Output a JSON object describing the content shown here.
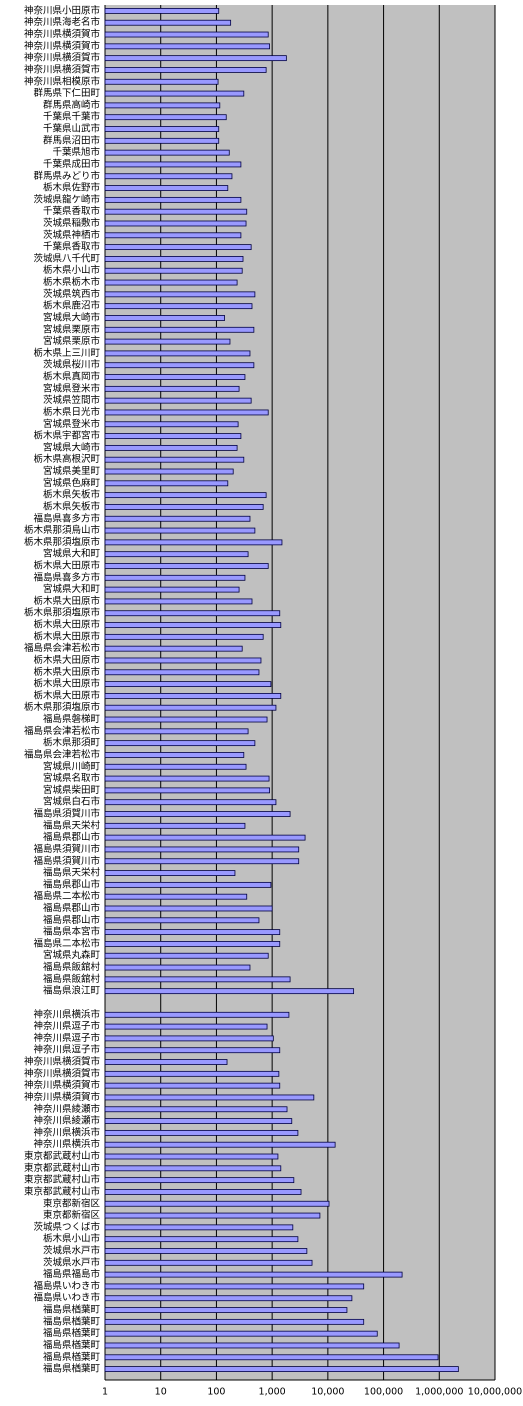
{
  "chart_data": {
    "type": "bar",
    "orientation": "horizontal",
    "log_scale": true,
    "grid": true,
    "color": "#9999ff",
    "categories": [
      "神奈川県小田原市",
      "神奈川県海老名市",
      "神奈川県横須賀市",
      "神奈川県横須賀市",
      "神奈川県横須賀市",
      "神奈川県横須賀市",
      "神奈川県相模原市",
      "群馬県下仁田町",
      "群馬県高崎市",
      "千葉県千葉市",
      "千葉県山武市",
      "群馬県沼田市",
      "千葉県旭市",
      "千葉県成田市",
      "群馬県みどり市",
      "栃木県佐野市",
      "茨城県龍ケ崎市",
      "千葉県香取市",
      "茨城県稲敷市",
      "茨城県神栖市",
      "千葉県香取市",
      "茨城県八千代町",
      "栃木県小山市",
      "栃木県栃木市",
      "茨城県筑西市",
      "栃木県鹿沼市",
      "宮城県大崎市",
      "宮城県栗原市",
      "宮城県栗原市",
      "栃木県上三川町",
      "茨城県桜川市",
      "栃木県真岡市",
      "宮城県登米市",
      "茨城県笠間市",
      "栃木県日光市",
      "宮城県登米市",
      "栃木県宇都宮市",
      "宮城県大崎市",
      "栃木県高根沢町",
      "宮城県美里町",
      "宮城県色麻町",
      "栃木県矢板市",
      "栃木県矢板市",
      "福島県喜多方市",
      "栃木県那須烏山市",
      "栃木県那須塩原市",
      "宮城県大和町",
      "栃木県大田原市",
      "福島県喜多方市",
      "宮城県大和町",
      "栃木県大田原市",
      "栃木県那須塩原市",
      "栃木県大田原市",
      "栃木県大田原市",
      "福島県会津若松市",
      "栃木県大田原市",
      "栃木県大田原市",
      "栃木県大田原市",
      "栃木県大田原市",
      "栃木県那須塩原市",
      "福島県磐梯町",
      "福島県会津若松市",
      "栃木県那須町",
      "福島県会津若松市",
      "宮城県川崎町",
      "宮城県名取市",
      "宮城県柴田町",
      "宮城県白石市",
      "福島県須賀川市",
      "福島県天栄村",
      "福島県郡山市",
      "福島県須賀川市",
      "福島県須賀川市",
      "福島県天栄村",
      "福島県郡山市",
      "福島県二本松市",
      "福島県郡山市",
      "福島県郡山市",
      "福島県本宮市",
      "福島県二本松市",
      "宮城県丸森町",
      "福島県飯舘村",
      "福島県飯舘村",
      "福島県浪江町",
      null,
      "神奈川県横浜市",
      "神奈川県逗子市",
      "神奈川県逗子市",
      "神奈川県逗子市",
      "神奈川県横須賀市",
      "神奈川県横須賀市",
      "神奈川県横須賀市",
      "神奈川県横須賀市",
      "神奈川県綾瀬市",
      "神奈川県綾瀬市",
      "神奈川県横浜市",
      "神奈川県横浜市",
      "東京都武蔵村山市",
      "東京都武蔵村山市",
      "東京都武蔵村山市",
      "東京都武蔵村山市",
      "東京都新宿区",
      "東京都新宿区",
      "茨城県つくば市",
      "栃木県小山市",
      "茨城県水戸市",
      "茨城県水戸市",
      "福島県福島市",
      "福島県いわき市",
      "福島県いわき市",
      "福島県楢葉町",
      "福島県楢葉町",
      "福島県楢葉町",
      "福島県楢葉町",
      "福島県楢葉町",
      "福島県楢葉町"
    ],
    "values": [
      110,
      180,
      850,
      900,
      1800,
      780,
      107,
      310,
      115,
      150,
      110,
      110,
      170,
      275,
      190,
      160,
      275,
      350,
      340,
      275,
      420,
      300,
      290,
      235,
      490,
      435,
      140,
      470,
      175,
      400,
      470,
      325,
      255,
      420,
      850,
      245,
      275,
      235,
      310,
      200,
      160,
      780,
      690,
      400,
      490,
      1500,
      370,
      850,
      325,
      255,
      435,
      1370,
      1430,
      690,
      290,
      630,
      580,
      950,
      1430,
      1170,
      810,
      370,
      490,
      310,
      340,
      880,
      900,
      1170,
      2100,
      325,
      3900,
      3000,
      3000,
      215,
      950,
      350,
      1000,
      580,
      1370,
      1370,
      850,
      400,
      2100,
      29000,
      null,
      2000,
      810,
      1050,
      1370,
      155,
      1320,
      1370,
      5600,
      1850,
      2250,
      2900,
      13500,
      1270,
      1430,
      2450,
      3300,
      10500,
      7200,
      2350,
      2900,
      4200,
      5200,
      215000,
      44000,
      27000,
      22000,
      44000,
      77000,
      190000,
      950000,
      2200000
    ],
    "xlim": [
      1,
      10000000
    ],
    "xticks": [
      1,
      10,
      100,
      {
        "value": 1000,
        "label": "1,000"
      },
      {
        "value": 10000,
        "label": "10,000"
      },
      {
        "value": 100000,
        "label": "100,000"
      },
      {
        "value": 1000000,
        "label": "1,000,000"
      },
      {
        "value": 10000000,
        "label": "10,000,000"
      }
    ]
  }
}
